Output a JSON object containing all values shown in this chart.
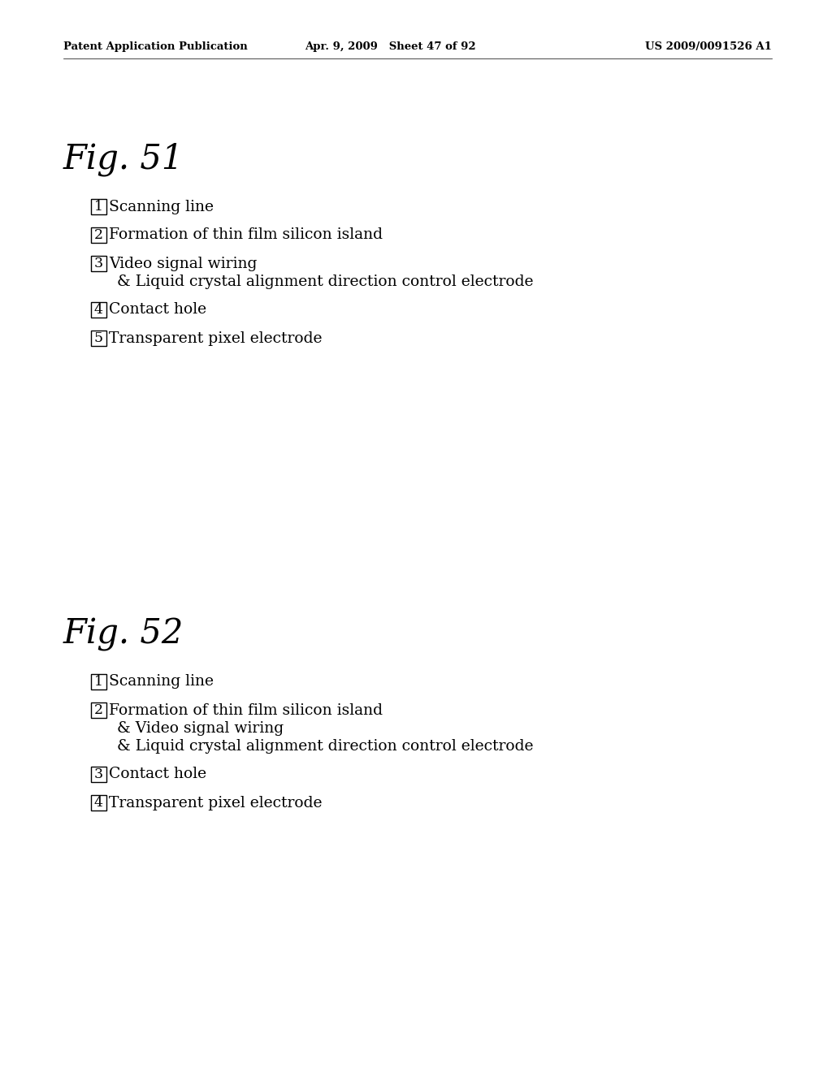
{
  "background_color": "#ffffff",
  "header": {
    "left": "Patent Application Publication",
    "center": "Apr. 9, 2009   Sheet 47 of 92",
    "right": "US 2009/0091526 A1",
    "fontsize": 9.5
  },
  "fig51": {
    "title": "Fig. 51",
    "items": [
      {
        "number": "1",
        "lines": [
          "Scanning line"
        ]
      },
      {
        "number": "2",
        "lines": [
          "Formation of thin film silicon island"
        ]
      },
      {
        "number": "3",
        "lines": [
          "Video signal wiring",
          "& Liquid crystal alignment direction control electrode"
        ]
      },
      {
        "number": "4",
        "lines": [
          "Contact hole"
        ]
      },
      {
        "number": "5",
        "lines": [
          "Transparent pixel electrode"
        ]
      }
    ]
  },
  "fig52": {
    "title": "Fig. 52",
    "items": [
      {
        "number": "1",
        "lines": [
          "Scanning line"
        ]
      },
      {
        "number": "2",
        "lines": [
          "Formation of thin film silicon island",
          "& Video signal wiring",
          "& Liquid crystal alignment direction control electrode"
        ]
      },
      {
        "number": "3",
        "lines": [
          "Contact hole"
        ]
      },
      {
        "number": "4",
        "lines": [
          "Transparent pixel electrode"
        ]
      }
    ]
  }
}
